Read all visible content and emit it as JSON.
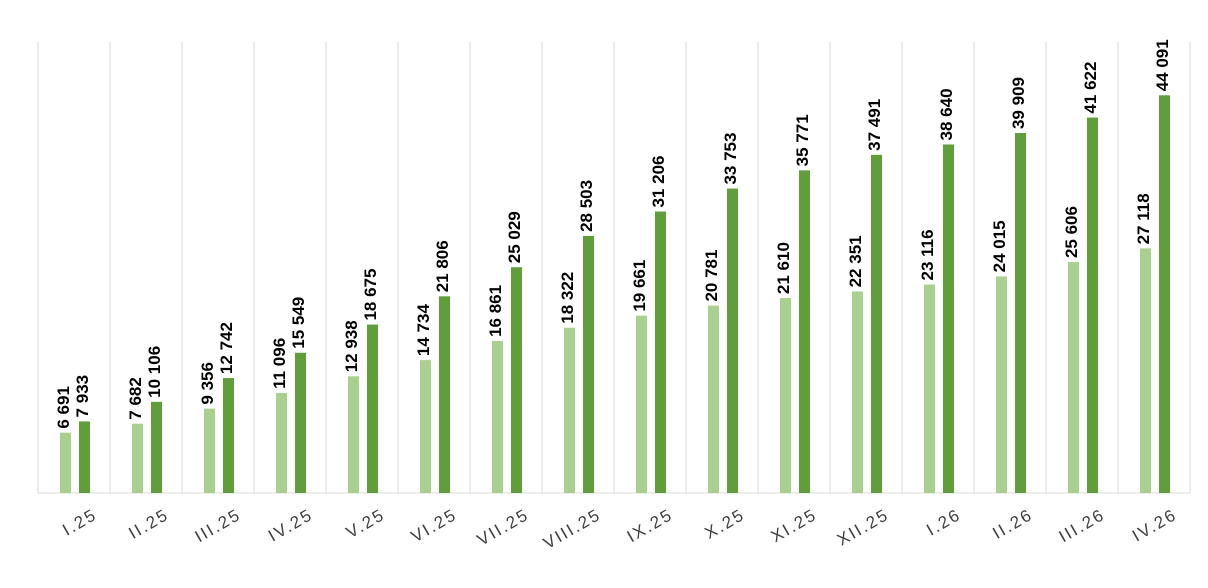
{
  "chart_data": {
    "type": "bar",
    "categories": [
      "I.25",
      "II.25",
      "III.25",
      "IV.25",
      "V.25",
      "VI.25",
      "VII.25",
      "VIII.25",
      "IX.25",
      "X.25",
      "XI.25",
      "XII.25",
      "I.26",
      "II.26",
      "III.26",
      "IV.26"
    ],
    "series": [
      {
        "color": "#a9d08e",
        "values": [
          6691,
          7682,
          9356,
          11096,
          12938,
          14734,
          16861,
          18322,
          19661,
          20781,
          21610,
          22351,
          23116,
          24015,
          25606,
          27118
        ],
        "value_labels": [
          "6 691",
          "7 682",
          "9 356",
          "11 096",
          "12 938",
          "14 734",
          "16 861",
          "18 322",
          "19 661",
          "20 781",
          "21 610",
          "22 351",
          "23 116",
          "24 015",
          "25 606",
          "27 118"
        ]
      },
      {
        "color": "#5f9e3a",
        "values": [
          7933,
          10106,
          12742,
          15549,
          18675,
          21806,
          25029,
          28503,
          31206,
          33753,
          35771,
          37491,
          38640,
          39909,
          41622,
          44091
        ],
        "value_labels": [
          "7 933",
          "10 106",
          "12 742",
          "15 549",
          "18 675",
          "21 806",
          "25 029",
          "28 503",
          "31 206",
          "33 753",
          "35 771",
          "37 491",
          "38 640",
          "39 909",
          "41 622",
          "44 091"
        ]
      }
    ],
    "ylim": [
      0,
      50000
    ]
  }
}
